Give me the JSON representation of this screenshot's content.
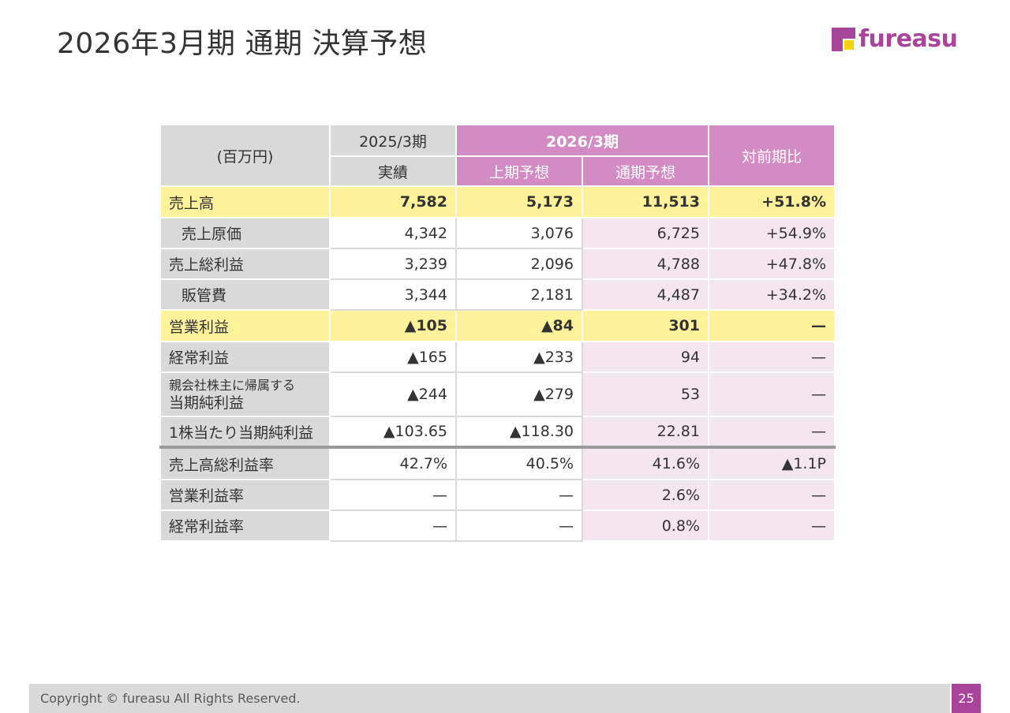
{
  "title": "2026年3月期 通期 決算予想",
  "logo": {
    "text": "fureasu",
    "colors": {
      "purple": "#a8459a",
      "yellow": "#f7d300"
    }
  },
  "table": {
    "unit": "(百万円)",
    "header": {
      "fy2025": "2025/3期",
      "fy2025_sub": "実績",
      "fy2026": "2026/3期",
      "fy2026_h1": "上期予想",
      "fy2026_full": "通期予想",
      "yoy": "対前期比"
    },
    "rows": [
      {
        "label": "売上高",
        "v": [
          "7,582",
          "5,173",
          "11,513",
          "+51.8%"
        ]
      },
      {
        "label": "売上原価",
        "v": [
          "4,342",
          "3,076",
          "6,725",
          "+54.9%"
        ]
      },
      {
        "label": "売上総利益",
        "v": [
          "3,239",
          "2,096",
          "4,788",
          "+47.8%"
        ]
      },
      {
        "label": "販管費",
        "v": [
          "3,344",
          "2,181",
          "4,487",
          "+34.2%"
        ]
      },
      {
        "label": "営業利益",
        "v": [
          "▲105",
          "▲84",
          "301",
          "—"
        ]
      },
      {
        "label": "経常利益",
        "v": [
          "▲165",
          "▲233",
          "94",
          "—"
        ]
      },
      {
        "label_line1": "親会社株主に帰属する",
        "label_line2": "当期純利益",
        "v": [
          "▲244",
          "▲279",
          "53",
          "—"
        ]
      },
      {
        "label": "1株当たり当期純利益",
        "v": [
          "▲103.65",
          "▲118.30",
          "22.81",
          "—"
        ]
      },
      {
        "label": "売上高総利益率",
        "v": [
          "42.7%",
          "40.5%",
          "41.6%",
          "▲1.1P"
        ]
      },
      {
        "label": "営業利益率",
        "v": [
          "—",
          "—",
          "2.6%",
          "—"
        ]
      },
      {
        "label": "経常利益率",
        "v": [
          "—",
          "—",
          "0.8%",
          "—"
        ]
      }
    ]
  },
  "footer": {
    "copyright": "Copyright © fureasu All Rights Reserved.",
    "page": "25"
  },
  "colors": {
    "header_pink": "#d28bc3",
    "highlight_yellow": "#fff29a",
    "forecast_pink": "#f3e6ee",
    "label_gray": "#d9d9d9"
  }
}
